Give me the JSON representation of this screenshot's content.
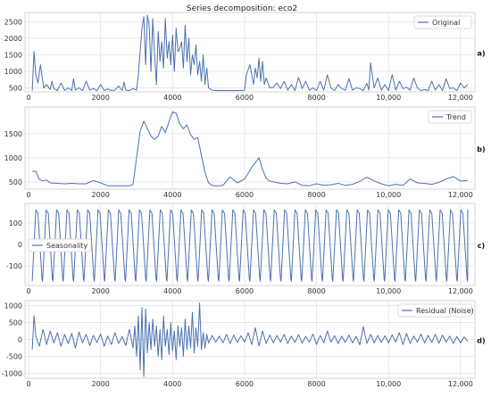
{
  "chart_data": {
    "type": "line",
    "title": "Series decomposition: eco2",
    "line_color": "#4c72b0",
    "grid": true,
    "x_ticks": [
      0,
      2000,
      4000,
      6000,
      8000,
      10000,
      12000
    ],
    "x_tick_labels": [
      "0",
      "2000",
      "4000",
      "6000",
      "8000",
      "10,000",
      "12,000"
    ],
    "xlim": [
      -100,
      12400
    ],
    "panels": [
      {
        "panel_label": "a)",
        "legend": "Original",
        "legend_position": "top-right",
        "ylim": [
          380,
          2780
        ],
        "y_ticks": [
          500,
          1000,
          1500,
          2000,
          2500
        ],
        "x": [
          100,
          150,
          200,
          260,
          330,
          420,
          500,
          600,
          650,
          700,
          800,
          900,
          1000,
          1100,
          1200,
          1250,
          1300,
          1400,
          1500,
          1600,
          1700,
          1800,
          1900,
          2000,
          2100,
          2200,
          2300,
          2400,
          2500,
          2600,
          2650,
          2700,
          2800,
          2900,
          3000,
          3050,
          3100,
          3150,
          3200,
          3250,
          3300,
          3350,
          3400,
          3450,
          3500,
          3550,
          3600,
          3650,
          3700,
          3750,
          3800,
          3850,
          3900,
          3950,
          4000,
          4050,
          4100,
          4150,
          4200,
          4250,
          4300,
          4350,
          4400,
          4450,
          4500,
          4550,
          4600,
          4650,
          4700,
          4750,
          4800,
          4850,
          4900,
          4950,
          5000,
          5100,
          5200,
          5300,
          5500,
          5700,
          5900,
          6000,
          6050,
          6150,
          6250,
          6300,
          6350,
          6400,
          6450,
          6500,
          6550,
          6600,
          6700,
          6800,
          6900,
          7000,
          7100,
          7200,
          7300,
          7400,
          7500,
          7600,
          7700,
          7800,
          7900,
          8000,
          8100,
          8200,
          8300,
          8400,
          8500,
          8600,
          8700,
          8800,
          8900,
          9000,
          9100,
          9200,
          9300,
          9400,
          9450,
          9500,
          9600,
          9700,
          9800,
          9900,
          10000,
          10100,
          10200,
          10300,
          10400,
          10500,
          10600,
          10700,
          10800,
          10900,
          11000,
          11100,
          11200,
          11300,
          11400,
          11500,
          11600,
          11700,
          11800,
          11900,
          12000,
          12100,
          12200
        ],
        "y": [
          420,
          1600,
          900,
          650,
          1200,
          500,
          600,
          450,
          700,
          480,
          420,
          650,
          420,
          500,
          420,
          780,
          430,
          500,
          420,
          700,
          430,
          480,
          420,
          600,
          420,
          470,
          420,
          430,
          560,
          420,
          680,
          430,
          420,
          480,
          430,
          900,
          1600,
          2300,
          2650,
          1200,
          2700,
          2400,
          1000,
          2600,
          1500,
          600,
          2200,
          1300,
          1900,
          1100,
          2600,
          1400,
          1900,
          1200,
          2100,
          1000,
          2300,
          1600,
          1700,
          1900,
          1100,
          2400,
          1300,
          2000,
          900,
          1500,
          1200,
          1800,
          900,
          1300,
          700,
          1500,
          600,
          1100,
          500,
          430,
          420,
          420,
          420,
          420,
          420,
          430,
          900,
          1200,
          600,
          1100,
          800,
          1400,
          700,
          1300,
          600,
          800,
          500,
          520,
          650,
          480,
          700,
          430,
          600,
          420,
          820,
          480,
          700,
          430,
          500,
          420,
          700,
          430,
          900,
          500,
          420,
          600,
          480,
          430,
          780,
          430,
          500,
          480,
          420,
          640,
          430,
          1260,
          500,
          800,
          430,
          600,
          420,
          900,
          430,
          700,
          480,
          520,
          430,
          800,
          500,
          420,
          450,
          420,
          700,
          430,
          600,
          420,
          780,
          480,
          500,
          420,
          650,
          500,
          600
        ]
      },
      {
        "panel_label": "b)",
        "legend": "Trend",
        "legend_position": "top-right",
        "ylim": [
          350,
          2050
        ],
        "y_ticks": [
          500,
          1000,
          1500
        ],
        "x": [
          100,
          200,
          300,
          400,
          500,
          600,
          800,
          1000,
          1200,
          1400,
          1600,
          1800,
          2000,
          2200,
          2400,
          2600,
          2800,
          2900,
          3000,
          3100,
          3200,
          3300,
          3400,
          3500,
          3600,
          3700,
          3800,
          3900,
          4000,
          4100,
          4200,
          4300,
          4400,
          4500,
          4600,
          4700,
          4800,
          4900,
          5000,
          5100,
          5200,
          5300,
          5400,
          5500,
          5600,
          5800,
          6000,
          6200,
          6400,
          6500,
          6600,
          6700,
          6800,
          7000,
          7200,
          7400,
          7600,
          7800,
          8000,
          8200,
          8400,
          8600,
          8800,
          9000,
          9200,
          9400,
          9600,
          9800,
          10000,
          10200,
          10400,
          10600,
          10800,
          11000,
          11200,
          11400,
          11600,
          11800,
          12000,
          12100,
          12200
        ],
        "y": [
          720,
          720,
          550,
          520,
          540,
          480,
          470,
          460,
          470,
          460,
          460,
          530,
          480,
          420,
          420,
          420,
          420,
          450,
          1000,
          1550,
          1760,
          1600,
          1450,
          1380,
          1450,
          1650,
          1520,
          1750,
          1950,
          1920,
          1700,
          1600,
          1680,
          1480,
          1380,
          1420,
          1050,
          700,
          480,
          430,
          420,
          420,
          430,
          520,
          600,
          480,
          560,
          800,
          1000,
          760,
          580,
          520,
          500,
          470,
          460,
          500,
          430,
          420,
          460,
          430,
          440,
          470,
          430,
          450,
          510,
          600,
          520,
          460,
          420,
          450,
          430,
          560,
          480,
          470,
          450,
          490,
          560,
          610,
          520,
          520,
          530
        ]
      },
      {
        "panel_label": "c)",
        "legend": "Seasonality",
        "legend_position": "center-left",
        "ylim": [
          -190,
          190
        ],
        "y_ticks": [
          -100,
          0,
          100
        ],
        "pattern": "periodic",
        "period": 288,
        "x_start": 100,
        "x_end": 12200,
        "max": 160,
        "min": -170
      },
      {
        "panel_label": "d)",
        "legend": "Residual (Noise)",
        "legend_position": "top-right",
        "ylim": [
          -1150,
          1150
        ],
        "y_ticks": [
          -1000,
          -500,
          0,
          500,
          1000
        ],
        "x": [
          100,
          150,
          200,
          300,
          400,
          500,
          600,
          700,
          800,
          900,
          1000,
          1100,
          1200,
          1300,
          1400,
          1500,
          1600,
          1700,
          1800,
          1900,
          2000,
          2100,
          2200,
          2300,
          2400,
          2500,
          2600,
          2700,
          2800,
          2900,
          2950,
          3000,
          3050,
          3100,
          3150,
          3200,
          3250,
          3300,
          3350,
          3400,
          3450,
          3500,
          3550,
          3600,
          3650,
          3700,
          3750,
          3800,
          3850,
          3900,
          3950,
          4000,
          4050,
          4100,
          4150,
          4200,
          4250,
          4300,
          4350,
          4400,
          4450,
          4500,
          4550,
          4600,
          4650,
          4700,
          4750,
          4800,
          4850,
          4900,
          4950,
          5000,
          5100,
          5200,
          5300,
          5400,
          5500,
          5600,
          5700,
          5800,
          5900,
          6000,
          6100,
          6200,
          6300,
          6400,
          6500,
          6600,
          6700,
          6800,
          6900,
          7000,
          7100,
          7200,
          7300,
          7400,
          7500,
          7600,
          7700,
          7800,
          7900,
          8000,
          8100,
          8200,
          8300,
          8400,
          8500,
          8600,
          8700,
          8800,
          8900,
          9000,
          9100,
          9200,
          9300,
          9400,
          9500,
          9600,
          9700,
          9800,
          9900,
          10000,
          10100,
          10200,
          10300,
          10400,
          10500,
          10600,
          10700,
          10800,
          10900,
          11000,
          11100,
          11200,
          11300,
          11400,
          11500,
          11600,
          11700,
          11800,
          11900,
          12000,
          12100,
          12200
        ],
        "y": [
          -300,
          700,
          100,
          -200,
          300,
          -150,
          250,
          -100,
          200,
          -200,
          150,
          -120,
          180,
          -250,
          220,
          -100,
          150,
          -180,
          120,
          -90,
          160,
          -200,
          100,
          -150,
          200,
          -120,
          90,
          -180,
          300,
          -250,
          400,
          -500,
          700,
          -900,
          950,
          -1100,
          900,
          -400,
          500,
          -300,
          600,
          -200,
          400,
          -500,
          300,
          -600,
          700,
          -200,
          300,
          -450,
          500,
          -350,
          250,
          -600,
          400,
          -200,
          350,
          -500,
          600,
          -300,
          400,
          -250,
          800,
          -400,
          350,
          -200,
          1080,
          -300,
          200,
          -250,
          150,
          -100,
          120,
          -80,
          100,
          -100,
          150,
          -120,
          130,
          -90,
          110,
          -80,
          200,
          -150,
          350,
          -200,
          250,
          -120,
          130,
          -100,
          120,
          -80,
          150,
          -120,
          100,
          -90,
          140,
          -110,
          90,
          -80,
          160,
          -150,
          120,
          -100,
          250,
          -80,
          110,
          -120,
          100,
          -90,
          130,
          -100,
          90,
          -160,
          380,
          -120,
          150,
          -100,
          120,
          -90,
          110,
          -100,
          140,
          -80,
          200,
          -150,
          180,
          -120,
          100,
          -80,
          160,
          -100,
          120,
          -90,
          150,
          -110,
          130,
          -80,
          100,
          -120,
          90,
          -100,
          80,
          -60
        ]
      }
    ]
  }
}
